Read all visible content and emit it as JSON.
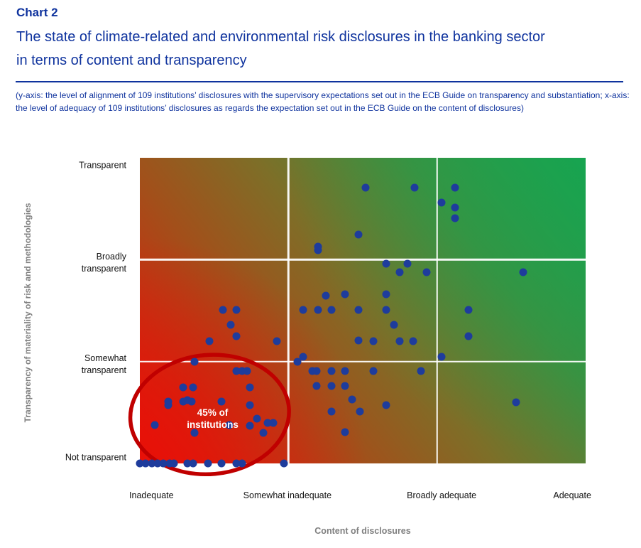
{
  "header": {
    "kicker": "Chart 2",
    "title_line1": "The state of climate-related and environmental risk disclosures in the banking sector",
    "title_line2": "in terms of content and transparency",
    "subtitle": "(y-axis: the level of alignment of 109 institutions’ disclosures with the supervisory expectations set out in the ECB Guide on transparency and substantiation; x-axis: the level of adequacy of 109 institutions’ disclosures as regards the expectation set out in the ECB Guide on the content of disclosures)"
  },
  "colors": {
    "header_blue": "#0F339E",
    "axis_gray": "#7F7F7F",
    "tick_black": "#111111",
    "dot_blue": "#1E3C9C",
    "ellipse_red": "#C00000",
    "grid_white": "#FFFFFF",
    "gradient": {
      "red": "#E81008",
      "brown_red": "#A34F1A",
      "olive": "#7D6F28",
      "green_mid": "#3F8F3F",
      "green": "#17A450"
    }
  },
  "chart_data": {
    "type": "scatter",
    "title": "The state of climate-related and environmental risk disclosures in the banking sector in terms of content and transparency",
    "xlabel": "Content of disclosures",
    "ylabel": "Transparency of materiality of risk and methodologies",
    "x_ticks": [
      "Inadequate",
      "Somewhat inadequate",
      "Broadly adequate",
      "Adequate"
    ],
    "y_ticks": [
      "Not transparent",
      "Somewhat transparent",
      "Broadly transparent",
      "Transparent"
    ],
    "xlim": [
      0,
      3
    ],
    "ylim": [
      0,
      3
    ],
    "grid": {
      "x_lines": [
        1,
        2
      ],
      "y_lines": [
        1,
        2
      ],
      "color": "#FFFFFF"
    },
    "legend": "none",
    "n_institutions": 109,
    "points": [
      [
        1.2,
        2.13
      ],
      [
        1.2,
        2.09
      ],
      [
        1.47,
        2.25
      ],
      [
        1.52,
        2.71
      ],
      [
        1.85,
        2.71
      ],
      [
        2.12,
        2.71
      ],
      [
        2.03,
        2.56
      ],
      [
        2.12,
        2.51
      ],
      [
        2.12,
        2.41
      ],
      [
        0.56,
        1.51
      ],
      [
        0.65,
        1.51
      ],
      [
        0.61,
        1.36
      ],
      [
        0.65,
        1.25
      ],
      [
        0.47,
        1.2
      ],
      [
        0.92,
        1.2
      ],
      [
        1.25,
        1.65
      ],
      [
        1.38,
        1.66
      ],
      [
        1.1,
        1.51
      ],
      [
        1.2,
        1.51
      ],
      [
        1.29,
        1.51
      ],
      [
        1.47,
        1.51
      ],
      [
        1.47,
        1.21
      ],
      [
        1.1,
        1.05
      ],
      [
        1.66,
        1.96
      ],
      [
        1.8,
        1.96
      ],
      [
        1.75,
        1.88
      ],
      [
        1.93,
        1.88
      ],
      [
        1.66,
        1.66
      ],
      [
        1.66,
        1.51
      ],
      [
        1.71,
        1.36
      ],
      [
        1.57,
        1.2
      ],
      [
        1.75,
        1.2
      ],
      [
        1.84,
        1.2
      ],
      [
        2.58,
        1.88
      ],
      [
        2.21,
        1.51
      ],
      [
        2.21,
        1.25
      ],
      [
        2.03,
        1.05
      ],
      [
        0.37,
        1.0
      ],
      [
        0.65,
        0.91
      ],
      [
        0.69,
        0.91
      ],
      [
        0.72,
        0.91
      ],
      [
        0.29,
        0.75
      ],
      [
        0.36,
        0.75
      ],
      [
        0.74,
        0.75
      ],
      [
        0.19,
        0.61
      ],
      [
        0.19,
        0.57
      ],
      [
        0.29,
        0.61
      ],
      [
        0.32,
        0.62
      ],
      [
        0.35,
        0.61
      ],
      [
        0.55,
        0.61
      ],
      [
        0.74,
        0.57
      ],
      [
        0.79,
        0.44
      ],
      [
        0.1,
        0.38
      ],
      [
        0.6,
        0.38
      ],
      [
        0.74,
        0.37
      ],
      [
        0.86,
        0.4
      ],
      [
        0.9,
        0.4
      ],
      [
        0.37,
        0.3
      ],
      [
        0.83,
        0.3
      ],
      [
        1.06,
        1.0
      ],
      [
        1.16,
        0.91
      ],
      [
        1.19,
        0.91
      ],
      [
        1.29,
        0.91
      ],
      [
        1.38,
        0.91
      ],
      [
        1.57,
        0.91
      ],
      [
        1.89,
        0.91
      ],
      [
        1.19,
        0.76
      ],
      [
        1.29,
        0.76
      ],
      [
        1.38,
        0.76
      ],
      [
        1.43,
        0.63
      ],
      [
        1.66,
        0.57
      ],
      [
        1.29,
        0.51
      ],
      [
        1.48,
        0.51
      ],
      [
        1.38,
        0.31
      ],
      [
        2.53,
        0.6
      ],
      [
        0.0,
        0
      ],
      [
        0.04,
        0
      ],
      [
        0.08,
        0
      ],
      [
        0.12,
        0
      ],
      [
        0.16,
        0
      ],
      [
        0.2,
        0
      ],
      [
        0.23,
        0
      ],
      [
        0.32,
        0
      ],
      [
        0.36,
        0
      ],
      [
        0.46,
        0
      ],
      [
        0.55,
        0
      ],
      [
        0.65,
        0
      ],
      [
        0.69,
        0
      ],
      [
        0.97,
        0
      ]
    ],
    "annotation": {
      "label_line1": "45% of",
      "label_line2": "institutions",
      "label_pos": {
        "x": 0.49,
        "y": 0.44
      },
      "ellipse": {
        "cx": 0.47,
        "cy": 0.48,
        "rx": 0.535,
        "ry": 0.585,
        "rotate": -5
      }
    }
  }
}
